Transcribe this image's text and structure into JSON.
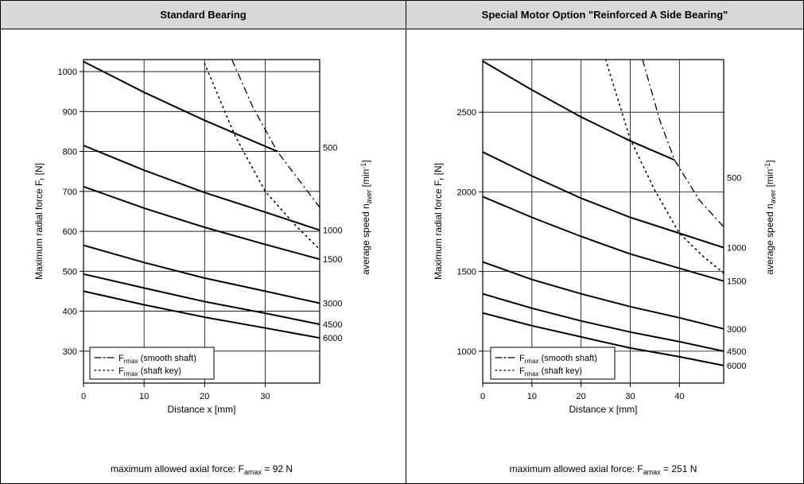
{
  "headers": [
    "Standard Bearing",
    "Special Motor Option \"Reinforced A Side Bearing\""
  ],
  "common": {
    "ylabel_main": "Maximum radial force F",
    "ylabel_sub": "r",
    "ylabel_unit": " [N]",
    "xlabel": "Distance x [mm]",
    "right_label_main": "average speed n",
    "right_label_sub": "aver",
    "right_label_unit_a": " [min",
    "right_label_unit_sup": "-1",
    "right_label_unit_b": "]",
    "legend": [
      {
        "sym": "F",
        "sub": "rmax",
        "text": " (smooth shaft)",
        "style": "dashdot"
      },
      {
        "sym": "F",
        "sub": "rmax",
        "text": " (shaft key)",
        "style": "dotted"
      }
    ],
    "axial_prefix": "maximum allowed axial force: F",
    "axial_sub": "amax",
    "axial_eq": " = "
  },
  "chart_data": [
    {
      "type": "line",
      "title": "Standard Bearing",
      "xlim": [
        0,
        39
      ],
      "ylim": [
        220,
        1030
      ],
      "xticks": [
        0,
        10,
        20,
        30
      ],
      "yticks": [
        300,
        400,
        500,
        600,
        700,
        800,
        900,
        1000
      ],
      "grid": true,
      "axial_value": "92 N",
      "speeds": [
        {
          "label": "500",
          "y_at_label": 810,
          "points": [
            [
              0,
              1025
            ],
            [
              10,
              948
            ],
            [
              20,
              878
            ],
            [
              32,
              800
            ]
          ]
        },
        {
          "label": "1000",
          "points": [
            [
              0,
              815
            ],
            [
              10,
              753
            ],
            [
              20,
              697
            ],
            [
              30,
              648
            ],
            [
              39,
              603
            ]
          ]
        },
        {
          "label": "1500",
          "points": [
            [
              0,
              712
            ],
            [
              10,
              658
            ],
            [
              20,
              610
            ],
            [
              30,
              567
            ],
            [
              39,
              530
            ]
          ]
        },
        {
          "label": "3000",
          "points": [
            [
              0,
              565
            ],
            [
              10,
              522
            ],
            [
              20,
              483
            ],
            [
              30,
              450
            ],
            [
              39,
              420
            ]
          ]
        },
        {
          "label": "4500",
          "points": [
            [
              0,
              493
            ],
            [
              10,
              458
            ],
            [
              20,
              424
            ],
            [
              30,
              395
            ],
            [
              39,
              367
            ]
          ]
        },
        {
          "label": "6000",
          "points": [
            [
              0,
              450
            ],
            [
              10,
              416
            ],
            [
              20,
              385
            ],
            [
              30,
              358
            ],
            [
              39,
              333
            ]
          ]
        }
      ],
      "limit_smooth_shaft": [
        [
          24.5,
          1030
        ],
        [
          28,
          910
        ],
        [
          32,
          800
        ],
        [
          35.5,
          730
        ],
        [
          39,
          660
        ]
      ],
      "limit_shaft_key": [
        [
          20,
          1020
        ],
        [
          25,
          840
        ],
        [
          30,
          700
        ],
        [
          35,
          615
        ],
        [
          39,
          555
        ]
      ]
    },
    {
      "type": "line",
      "title": "Special Motor Option \"Reinforced A Side Bearing\"",
      "xlim": [
        0,
        49
      ],
      "ylim": [
        800,
        2830
      ],
      "xticks": [
        0,
        10,
        20,
        30,
        40
      ],
      "yticks": [
        1000,
        1500,
        2000,
        2500
      ],
      "grid": true,
      "axial_value": "251 N",
      "speeds": [
        {
          "label": "500",
          "y_at_label": 2090,
          "points": [
            [
              0,
              2820
            ],
            [
              10,
              2640
            ],
            [
              20,
              2470
            ],
            [
              30,
              2320
            ],
            [
              39,
              2200
            ]
          ]
        },
        {
          "label": "1000",
          "points": [
            [
              0,
              2250
            ],
            [
              10,
              2100
            ],
            [
              20,
              1960
            ],
            [
              30,
              1840
            ],
            [
              40,
              1740
            ],
            [
              49,
              1650
            ]
          ]
        },
        {
          "label": "1500",
          "points": [
            [
              0,
              1970
            ],
            [
              10,
              1840
            ],
            [
              20,
              1720
            ],
            [
              30,
              1610
            ],
            [
              40,
              1520
            ],
            [
              49,
              1440
            ]
          ]
        },
        {
          "label": "3000",
          "points": [
            [
              0,
              1560
            ],
            [
              10,
              1450
            ],
            [
              20,
              1360
            ],
            [
              30,
              1280
            ],
            [
              40,
              1210
            ],
            [
              49,
              1140
            ]
          ]
        },
        {
          "label": "4500",
          "points": [
            [
              0,
              1360
            ],
            [
              10,
              1270
            ],
            [
              20,
              1190
            ],
            [
              30,
              1120
            ],
            [
              40,
              1060
            ],
            [
              49,
              1000
            ]
          ]
        },
        {
          "label": "6000",
          "points": [
            [
              0,
              1240
            ],
            [
              10,
              1160
            ],
            [
              20,
              1090
            ],
            [
              30,
              1020
            ],
            [
              40,
              965
            ],
            [
              49,
              910
            ]
          ]
        }
      ],
      "limit_smooth_shaft": [
        [
          32.5,
          2830
        ],
        [
          36,
          2450
        ],
        [
          39,
          2200
        ],
        [
          44,
          1950
        ],
        [
          49,
          1780
        ]
      ],
      "limit_shaft_key": [
        [
          25,
          2830
        ],
        [
          30,
          2330
        ],
        [
          35,
          2010
        ],
        [
          40,
          1740
        ],
        [
          45,
          1590
        ],
        [
          49,
          1490
        ]
      ]
    }
  ]
}
